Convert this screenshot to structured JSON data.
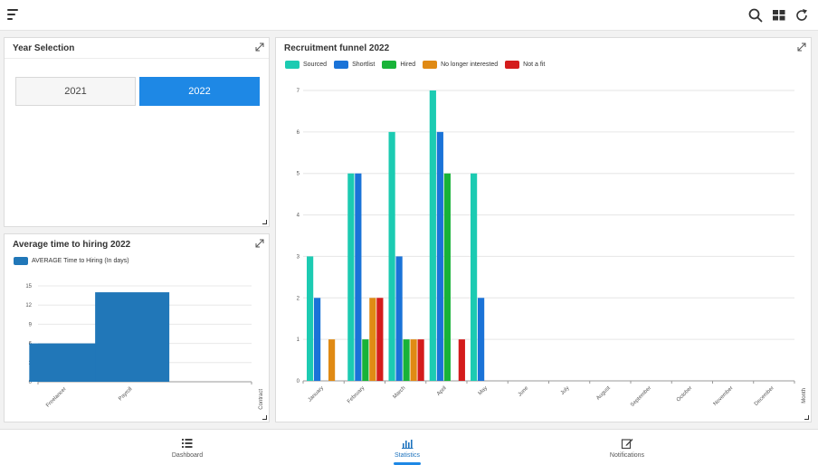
{
  "toolbar": {
    "icons": [
      "menu-icon",
      "search-icon",
      "grid-icon",
      "refresh-icon"
    ]
  },
  "year_panel": {
    "title": "Year Selection",
    "years": [
      "2021",
      "2022"
    ],
    "selected": "2022"
  },
  "avg_panel": {
    "title": "Average time to hiring 2022",
    "legend": "AVERAGE Time to Hiring (In days)"
  },
  "funnel_panel": {
    "title": "Recruitment funnel 2022"
  },
  "chart_data": [
    {
      "type": "bar",
      "title": "Average time to hiring 2022",
      "categories": [
        "Freelancer",
        "Payroll",
        "Contract"
      ],
      "series": [
        {
          "name": "AVERAGE Time to Hiring (In days)",
          "values": [
            6,
            14,
            0
          ]
        }
      ],
      "ylim": [
        0,
        15
      ],
      "yticks": [
        0,
        3,
        6,
        9,
        12,
        15
      ],
      "legend_position": "top-left",
      "grid": true,
      "colors": [
        "#2177b8"
      ]
    },
    {
      "type": "bar",
      "title": "Recruitment funnel 2022",
      "xlabel": "Month",
      "categories": [
        "January",
        "February",
        "March",
        "April",
        "May",
        "June",
        "July",
        "August",
        "September",
        "October",
        "November",
        "December"
      ],
      "series": [
        {
          "name": "Sourced",
          "values": [
            3,
            5,
            6,
            7,
            5,
            0,
            0,
            0,
            0,
            0,
            0,
            0
          ]
        },
        {
          "name": "Shortlist",
          "values": [
            2,
            5,
            3,
            6,
            2,
            0,
            0,
            0,
            0,
            0,
            0,
            0
          ]
        },
        {
          "name": "Hired",
          "values": [
            0,
            1,
            1,
            5,
            0,
            0,
            0,
            0,
            0,
            0,
            0,
            0
          ]
        },
        {
          "name": "No longer interested",
          "values": [
            1,
            2,
            1,
            0,
            0,
            0,
            0,
            0,
            0,
            0,
            0,
            0
          ]
        },
        {
          "name": "Not a fit",
          "values": [
            0,
            2,
            1,
            1,
            0,
            0,
            0,
            0,
            0,
            0,
            0,
            0
          ]
        }
      ],
      "ylim": [
        0,
        7
      ],
      "yticks": [
        0,
        1,
        2,
        3,
        4,
        5,
        6,
        7
      ],
      "legend_position": "top-left",
      "grid": true,
      "colors": [
        "#1ccbb2",
        "#1a73d8",
        "#18b338",
        "#e08a14",
        "#d41c1c"
      ]
    }
  ],
  "bottom_nav": {
    "items": [
      {
        "label": "Dashboard",
        "icon": "list-icon"
      },
      {
        "label": "Statistics",
        "icon": "bar-chart-icon"
      },
      {
        "label": "Notifications",
        "icon": "edit-icon"
      }
    ],
    "active": "Statistics"
  }
}
